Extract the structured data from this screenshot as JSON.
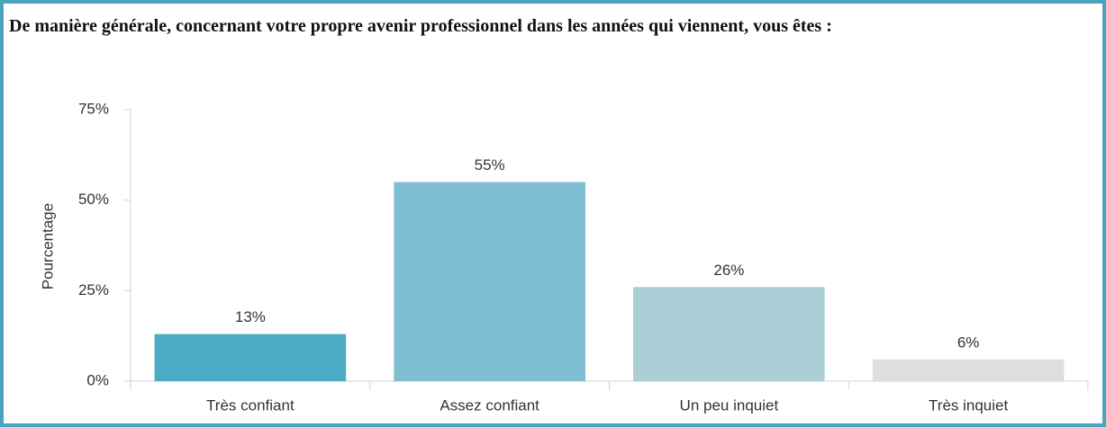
{
  "chart_data": {
    "type": "bar",
    "title": "De manière générale, concernant votre propre avenir professionnel dans les années qui viennent, vous êtes :",
    "y_label": "Pourcentage",
    "categories": [
      "Très confiant",
      "Assez confiant",
      "Un peu inquiet",
      "Très inquiet"
    ],
    "values": [
      13,
      55,
      26,
      6
    ],
    "value_labels": [
      "13%",
      "55%",
      "26%",
      "6%"
    ],
    "colors": [
      "#4aabc4",
      "#7fbdd0",
      "#aacdd6",
      "#dedede"
    ],
    "ylim": [
      0,
      75
    ],
    "yticks": [
      {
        "value": 0,
        "label": "0%"
      },
      {
        "value": 25,
        "label": "25%"
      },
      {
        "value": 50,
        "label": "50%"
      },
      {
        "value": 75,
        "label": "75%"
      }
    ],
    "grid": false
  }
}
